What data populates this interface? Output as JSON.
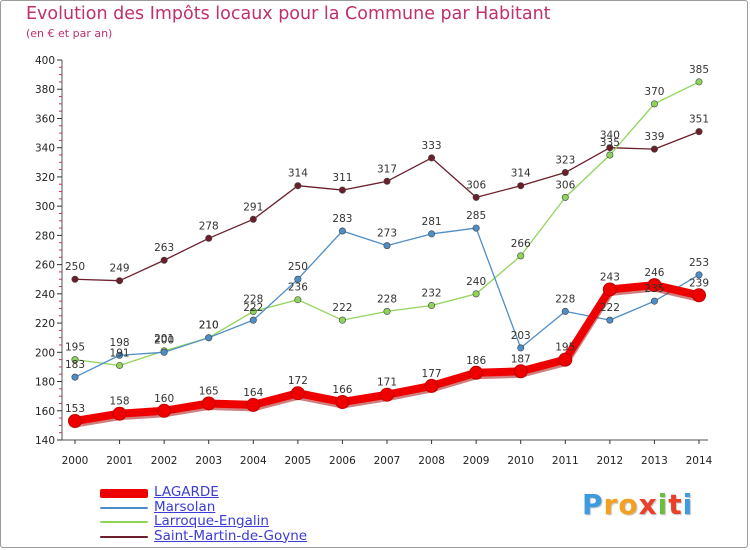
{
  "title": "Evolution des Impôts locaux pour la Commune par Habitant",
  "subtitle": "(en € et par an)",
  "logo": {
    "letters": [
      "P",
      "r",
      "o",
      "x",
      "i",
      "t",
      "i"
    ],
    "colors": [
      "#3d9be0",
      "#f4a020",
      "#f4a020",
      "#e8402a",
      "#6bbf3b",
      "#e8402a",
      "#3d9be0"
    ]
  },
  "chart_data": {
    "type": "line",
    "title": "Evolution des Impôts locaux pour la Commune par Habitant",
    "subtitle": "(en € et par an)",
    "xlabel": "",
    "ylabel": "",
    "ylim": [
      140,
      400
    ],
    "yticks": [
      140,
      160,
      180,
      200,
      220,
      240,
      260,
      280,
      300,
      320,
      340,
      360,
      380,
      400
    ],
    "x": [
      2000,
      2001,
      2002,
      2003,
      2004,
      2005,
      2006,
      2007,
      2008,
      2009,
      2010,
      2011,
      2012,
      2013,
      2014
    ],
    "series": [
      {
        "name": "Saint-Martin-de-Goyne",
        "color": "#6b1f2a",
        "values": [
          250,
          249,
          263,
          278,
          291,
          314,
          311,
          317,
          333,
          306,
          314,
          323,
          340,
          339,
          351
        ],
        "labels": [
          "250",
          "249",
          "263",
          "278",
          "291",
          "314",
          "311",
          "317",
          "333",
          "306",
          "314",
          "323",
          "340",
          "339",
          "351"
        ]
      },
      {
        "name": "Larroque-Engalin",
        "color": "#8fd45a",
        "values": [
          195,
          191,
          201,
          210,
          228,
          236,
          222,
          228,
          232,
          240,
          266,
          306,
          335,
          370,
          385
        ],
        "labels": [
          "195",
          "191",
          "201",
          "210",
          "228",
          "236",
          "222",
          "228",
          "232",
          "240",
          "266",
          "306",
          "335",
          "370",
          "385"
        ]
      },
      {
        "name": "Marsolan",
        "color": "#4e8ec8",
        "values": [
          183,
          198,
          200,
          210,
          222,
          250,
          283,
          273,
          281,
          285,
          203,
          228,
          222,
          235,
          253
        ],
        "labels": [
          "183",
          "198",
          "200",
          "210",
          "222",
          "250",
          "283",
          "273",
          "281",
          "285",
          "203",
          "228",
          "222",
          "235",
          "253"
        ]
      },
      {
        "name": "LAGARDE",
        "color": "#ee0000",
        "values": [
          153,
          158,
          160,
          165,
          164,
          172,
          166,
          171,
          177,
          186,
          187,
          195,
          243,
          246,
          239
        ],
        "labels": [
          "153",
          "158",
          "160",
          "165",
          "164",
          "172",
          "166",
          "171",
          "177",
          "186",
          "187",
          "195",
          "243",
          "246",
          "239"
        ]
      }
    ],
    "legend": [
      "LAGARDE",
      "Marsolan",
      "Larroque-Engalin",
      "Saint-Martin-de-Goyne"
    ],
    "legend_position": "bottom-left",
    "grid": false
  }
}
